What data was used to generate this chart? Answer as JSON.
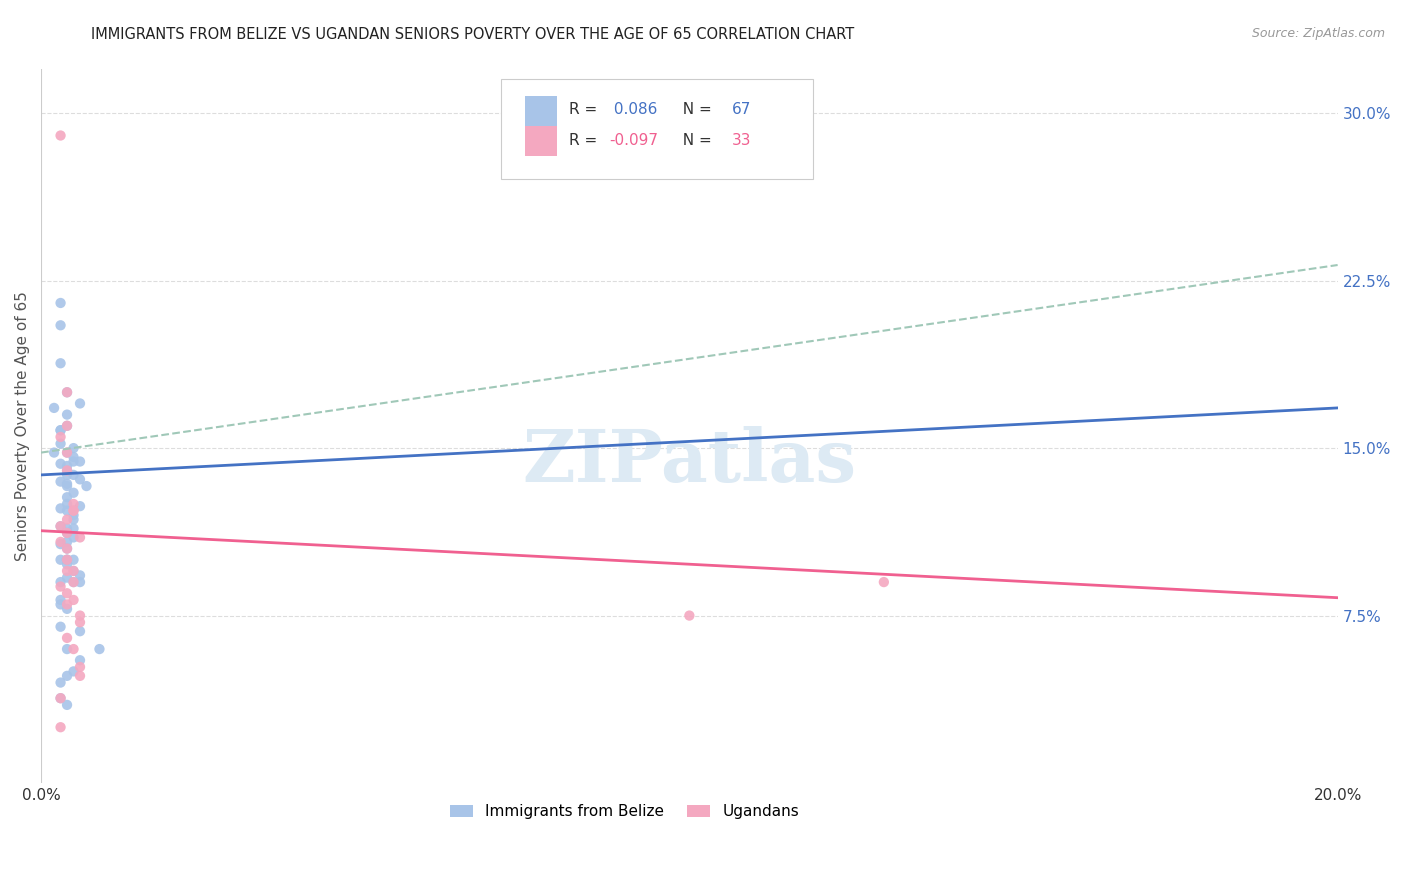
{
  "title": "IMMIGRANTS FROM BELIZE VS UGANDAN SENIORS POVERTY OVER THE AGE OF 65 CORRELATION CHART",
  "source": "Source: ZipAtlas.com",
  "ylabel": "Seniors Poverty Over the Age of 65",
  "xlim": [
    0.0,
    0.2
  ],
  "ylim": [
    0.0,
    0.32
  ],
  "yticks": [
    0.075,
    0.15,
    0.225,
    0.3
  ],
  "ytick_labels": [
    "7.5%",
    "15.0%",
    "22.5%",
    "30.0%"
  ],
  "xticks": [
    0.0,
    0.05,
    0.1,
    0.15,
    0.2
  ],
  "xtick_labels": [
    "0.0%",
    "",
    "",
    "",
    "20.0%"
  ],
  "belize_color": "#a8c4e8",
  "ugandan_color": "#f4a8c0",
  "belize_line_color": "#4472c4",
  "ugandan_line_color": "#f06090",
  "dashed_line_color": "#a0c8b8",
  "watermark_color": "#ddeaf4",
  "watermark": "ZIPatlas",
  "legend1_label_r": "R =  0.086",
  "legend1_label_n": "N = 67",
  "legend2_label_r": "R = -0.097",
  "legend2_label_n": "N = 33",
  "legend_bottom_1": "Immigrants from Belize",
  "legend_bottom_2": "Ugandans",
  "r_color": "#4472c4",
  "n_color": "#4472c4",
  "r2_color": "#f06090",
  "n2_color": "#f06090",
  "belize_scatter_x": [
    0.005,
    0.003,
    0.003,
    0.003,
    0.004,
    0.006,
    0.002,
    0.004,
    0.004,
    0.003,
    0.003,
    0.003,
    0.002,
    0.004,
    0.005,
    0.005,
    0.006,
    0.003,
    0.004,
    0.004,
    0.004,
    0.005,
    0.006,
    0.003,
    0.004,
    0.007,
    0.004,
    0.005,
    0.004,
    0.004,
    0.006,
    0.003,
    0.004,
    0.005,
    0.005,
    0.003,
    0.004,
    0.005,
    0.004,
    0.005,
    0.004,
    0.003,
    0.004,
    0.003,
    0.004,
    0.004,
    0.005,
    0.004,
    0.005,
    0.006,
    0.004,
    0.003,
    0.005,
    0.006,
    0.003,
    0.003,
    0.004,
    0.003,
    0.006,
    0.004,
    0.009,
    0.006,
    0.005,
    0.004,
    0.003,
    0.003,
    0.004
  ],
  "belize_scatter_y": [
    0.15,
    0.215,
    0.205,
    0.188,
    0.175,
    0.17,
    0.168,
    0.165,
    0.16,
    0.158,
    0.158,
    0.152,
    0.148,
    0.148,
    0.146,
    0.144,
    0.144,
    0.143,
    0.142,
    0.14,
    0.138,
    0.138,
    0.136,
    0.135,
    0.134,
    0.133,
    0.133,
    0.13,
    0.128,
    0.125,
    0.124,
    0.123,
    0.122,
    0.12,
    0.118,
    0.115,
    0.114,
    0.114,
    0.112,
    0.11,
    0.108,
    0.107,
    0.105,
    0.1,
    0.1,
    0.1,
    0.1,
    0.098,
    0.095,
    0.093,
    0.092,
    0.09,
    0.09,
    0.09,
    0.082,
    0.08,
    0.078,
    0.07,
    0.068,
    0.06,
    0.06,
    0.055,
    0.05,
    0.048,
    0.045,
    0.038,
    0.035
  ],
  "ugandan_scatter_x": [
    0.003,
    0.004,
    0.004,
    0.003,
    0.004,
    0.004,
    0.005,
    0.005,
    0.005,
    0.004,
    0.003,
    0.004,
    0.006,
    0.003,
    0.004,
    0.004,
    0.004,
    0.005,
    0.005,
    0.003,
    0.004,
    0.005,
    0.004,
    0.006,
    0.006,
    0.004,
    0.005,
    0.006,
    0.006,
    0.13,
    0.1,
    0.003,
    0.003
  ],
  "ugandan_scatter_y": [
    0.29,
    0.175,
    0.16,
    0.155,
    0.148,
    0.14,
    0.125,
    0.122,
    0.122,
    0.118,
    0.115,
    0.112,
    0.11,
    0.108,
    0.105,
    0.1,
    0.095,
    0.095,
    0.09,
    0.088,
    0.085,
    0.082,
    0.08,
    0.075,
    0.072,
    0.065,
    0.06,
    0.052,
    0.048,
    0.09,
    0.075,
    0.038,
    0.025
  ],
  "belize_trend_x": [
    0.0,
    0.2
  ],
  "belize_trend_y": [
    0.138,
    0.168
  ],
  "ugandan_trend_x": [
    0.0,
    0.2
  ],
  "ugandan_trend_y": [
    0.113,
    0.083
  ],
  "dashed_trend_x": [
    0.0,
    0.2
  ],
  "dashed_trend_y": [
    0.148,
    0.232
  ]
}
